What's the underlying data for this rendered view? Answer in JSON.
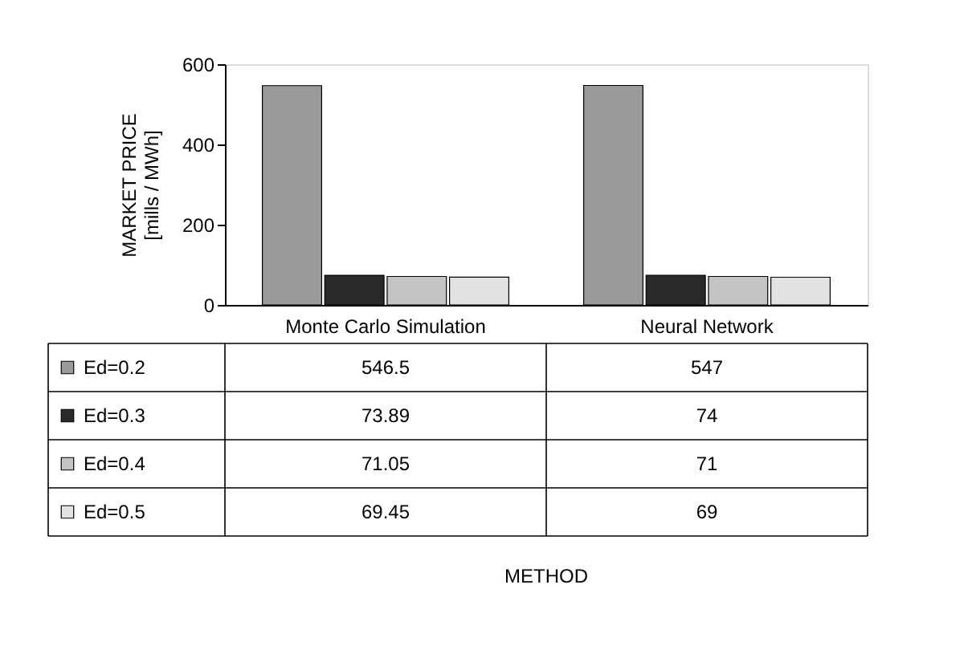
{
  "chart_data": {
    "type": "bar",
    "ylabel": "MARKET PRICE\n[mills / MWh]",
    "annotations": [
      "METHOD"
    ],
    "categories": [
      "Monte Carlo Simulation",
      "Neural Network"
    ],
    "series": [
      {
        "name": "Ed=0.2",
        "color": "#9a9a9a",
        "values": [
          546.5,
          547
        ]
      },
      {
        "name": "Ed=0.3",
        "color": "#2a2a2a",
        "values": [
          73.89,
          74
        ]
      },
      {
        "name": "Ed=0.4",
        "color": "#c4c4c4",
        "values": [
          71.05,
          71
        ]
      },
      {
        "name": "Ed=0.5",
        "color": "#e2e2e2",
        "values": [
          69.45,
          69
        ]
      }
    ],
    "ylim": [
      0,
      600
    ],
    "yticks": [
      0,
      200,
      400,
      600
    ],
    "grid": false,
    "legend": "bottom left",
    "data_labels": true
  }
}
